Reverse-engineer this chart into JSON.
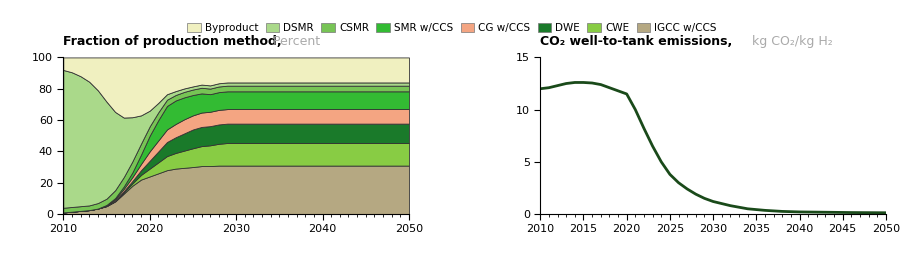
{
  "legend_labels": [
    "Byproduct",
    "DSMR",
    "CSMR",
    "SMR w/CCS",
    "CG w/CCS",
    "DWE",
    "CWE",
    "IGCC w/CCS"
  ],
  "legend_colors": [
    "#f0f0c0",
    "#aad98a",
    "#77c455",
    "#33bb33",
    "#f4a582",
    "#1a7a2a",
    "#88cc44",
    "#b5a882"
  ],
  "left_title_bold": "Fraction of production method,",
  "left_title_gray": " Percent",
  "right_title_bold": "CO₂ well-to-tank emissions,",
  "right_title_gray": " kg CO₂/kg H₂",
  "years": [
    2010,
    2011,
    2012,
    2013,
    2014,
    2015,
    2016,
    2017,
    2018,
    2019,
    2020,
    2021,
    2022,
    2023,
    2024,
    2025,
    2026,
    2027,
    2028,
    2029,
    2030,
    2031,
    2032,
    2033,
    2034,
    2035,
    2036,
    2037,
    2038,
    2039,
    2040,
    2041,
    2042,
    2043,
    2044,
    2045,
    2046,
    2047,
    2048,
    2049,
    2050
  ],
  "stack_data_bottom_to_top": {
    "IGCC w/CCS": [
      1,
      1.5,
      2,
      2.5,
      3.5,
      5,
      8,
      13,
      18,
      22,
      24,
      26,
      28,
      29,
      29.5,
      30,
      30,
      30,
      30,
      30,
      30,
      30,
      30,
      30,
      30,
      30,
      30,
      30,
      30,
      30,
      30,
      30,
      30,
      30,
      30,
      30,
      30,
      30,
      30,
      30,
      30
    ],
    "CWE": [
      0,
      0,
      0,
      0,
      0,
      0.1,
      0.3,
      0.8,
      1.5,
      3,
      5,
      7,
      9,
      10,
      11,
      12,
      12.5,
      13,
      13.5,
      14,
      14,
      14,
      14,
      14,
      14,
      14,
      14,
      14,
      14,
      14,
      14,
      14,
      14,
      14,
      14,
      14,
      14,
      14,
      14,
      14,
      14
    ],
    "DWE": [
      0,
      0,
      0,
      0,
      0,
      0.1,
      0.3,
      0.8,
      1.5,
      3,
      5,
      7,
      9,
      10,
      11,
      12,
      12,
      12,
      12,
      12,
      12,
      12,
      12,
      12,
      12,
      12,
      12,
      12,
      12,
      12,
      12,
      12,
      12,
      12,
      12,
      12,
      12,
      12,
      12,
      12,
      12
    ],
    "CG w/CCS": [
      0,
      0,
      0,
      0,
      0,
      0.3,
      0.8,
      1.5,
      2.5,
      4,
      6,
      7,
      8,
      8.5,
      9,
      9,
      9,
      9,
      9,
      9,
      9,
      9,
      9,
      9,
      9,
      9,
      9,
      9,
      9,
      9,
      9,
      9,
      9,
      9,
      9,
      9,
      9,
      9,
      9,
      9,
      9
    ],
    "SMR w/CCS": [
      0,
      0,
      0,
      0,
      0,
      0.3,
      0.8,
      1.5,
      3,
      6,
      10,
      13,
      15,
      15,
      14,
      13,
      12,
      11,
      11,
      11,
      11,
      11,
      11,
      11,
      11,
      11,
      11,
      11,
      11,
      11,
      11,
      11,
      11,
      11,
      11,
      11,
      11,
      11,
      11,
      11,
      11
    ],
    "CSMR": [
      3,
      3,
      3,
      3,
      3.5,
      4,
      5,
      6,
      7,
      7,
      6,
      5,
      4,
      3.5,
      3.5,
      3.5,
      3.5,
      3.5,
      3.5,
      3.5,
      3.5,
      3.5,
      3.5,
      3.5,
      3.5,
      3.5,
      3.5,
      3.5,
      3.5,
      3.5,
      3.5,
      3.5,
      3.5,
      3.5,
      3.5,
      3.5,
      3.5,
      3.5,
      3.5,
      3.5,
      3.5
    ],
    "DSMR": [
      88,
      86,
      83,
      79,
      72,
      62,
      50,
      38,
      28,
      18,
      10,
      6,
      3.5,
      2.5,
      2.2,
      2,
      2,
      2,
      2,
      2,
      2,
      2,
      2,
      2,
      2,
      2,
      2,
      2,
      2,
      2,
      2,
      2,
      2,
      2,
      2,
      2,
      2,
      2,
      2,
      2,
      2
    ],
    "Byproduct": [
      8,
      9.5,
      12,
      15.5,
      21,
      28.2,
      34.8,
      38.4,
      38,
      37,
      34,
      29,
      23.5,
      21.5,
      19.8,
      18.5,
      17,
      17.5,
      16,
      15.5,
      15.5,
      15.5,
      15.5,
      15.5,
      15.5,
      15.5,
      15.5,
      15.5,
      15.5,
      15.5,
      15.5,
      15.5,
      15.5,
      15.5,
      15.5,
      15.5,
      15.5,
      15.5,
      15.5,
      15.5,
      15.5
    ]
  },
  "emissions_years": [
    2010,
    2011,
    2012,
    2013,
    2014,
    2015,
    2016,
    2017,
    2018,
    2019,
    2020,
    2021,
    2022,
    2023,
    2024,
    2025,
    2026,
    2027,
    2028,
    2029,
    2030,
    2032,
    2034,
    2036,
    2038,
    2040,
    2042,
    2044,
    2046,
    2048,
    2050
  ],
  "emissions_values": [
    12.0,
    12.1,
    12.3,
    12.5,
    12.6,
    12.6,
    12.55,
    12.4,
    12.1,
    11.8,
    11.5,
    10.0,
    8.2,
    6.5,
    5.0,
    3.8,
    3.0,
    2.4,
    1.9,
    1.5,
    1.2,
    0.8,
    0.5,
    0.35,
    0.25,
    0.2,
    0.18,
    0.16,
    0.14,
    0.13,
    0.12
  ],
  "line_color": "#1a4a1a",
  "background_color": "#ffffff",
  "stack_order": [
    "IGCC w/CCS",
    "CWE",
    "DWE",
    "CG w/CCS",
    "SMR w/CCS",
    "CSMR",
    "DSMR",
    "Byproduct"
  ],
  "stack_colors_ordered": [
    "#b5a882",
    "#88cc44",
    "#1a7a2a",
    "#f4a582",
    "#33bb33",
    "#77c455",
    "#aad98a",
    "#f0f0c0"
  ]
}
